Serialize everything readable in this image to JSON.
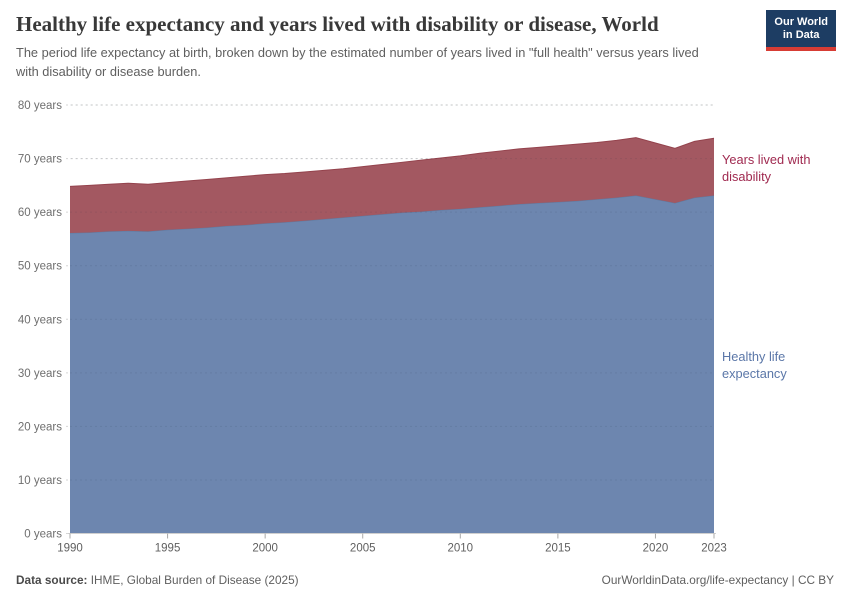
{
  "header": {
    "title": "Healthy life expectancy and years lived with disability or disease, World",
    "subtitle": "The period life expectancy at birth, broken down by the estimated number of years lived in \"full health\" versus years lived with disability or disease burden."
  },
  "logo": {
    "line1": "Our World",
    "line2": "in Data",
    "bg_color": "#1d3d63",
    "accent_color": "#d73c34"
  },
  "chart_data": {
    "type": "area",
    "stacked": true,
    "title": "Healthy life expectancy and years lived with disability or disease, World",
    "xlabel": "",
    "ylabel": "years",
    "ylim": [
      0,
      80
    ],
    "grid": "dashed horizontal",
    "legend_position": "right-edge annotations",
    "x": [
      1990,
      1991,
      1992,
      1993,
      1994,
      1995,
      1996,
      1997,
      1998,
      1999,
      2000,
      2001,
      2002,
      2003,
      2004,
      2005,
      2006,
      2007,
      2008,
      2009,
      2010,
      2011,
      2012,
      2013,
      2014,
      2015,
      2016,
      2017,
      2018,
      2019,
      2020,
      2021,
      2022,
      2023
    ],
    "x_ticks": [
      1990,
      1995,
      2000,
      2005,
      2010,
      2015,
      2020,
      2023
    ],
    "x_tick_labels": [
      "1990",
      "1995",
      "2000",
      "2005",
      "2010",
      "2015",
      "2020",
      "2023"
    ],
    "y_ticks": [
      0,
      10,
      20,
      30,
      40,
      50,
      60,
      70,
      80
    ],
    "y_tick_labels": [
      "0 years",
      "10 years",
      "20 years",
      "30 years",
      "40 years",
      "50 years",
      "60 years",
      "70 years",
      "80 years"
    ],
    "series": [
      {
        "name": "Healthy life expectancy",
        "color": "#6d86af",
        "edge_color": "#60799f",
        "label_color": "#5b77a8",
        "values": [
          56.1,
          56.2,
          56.4,
          56.5,
          56.4,
          56.7,
          56.9,
          57.1,
          57.4,
          57.6,
          57.9,
          58.1,
          58.4,
          58.7,
          59.0,
          59.3,
          59.6,
          59.9,
          60.1,
          60.4,
          60.6,
          60.9,
          61.2,
          61.5,
          61.7,
          61.9,
          62.1,
          62.4,
          62.7,
          63.1,
          62.4,
          61.7,
          62.7,
          63.1
        ]
      },
      {
        "name": "Years lived with disability",
        "color": "#a35861",
        "edge_color": "#94434d",
        "label_color": "#a02a50",
        "values": [
          8.7,
          8.8,
          8.8,
          8.9,
          8.8,
          8.8,
          8.9,
          9.0,
          9.0,
          9.1,
          9.1,
          9.1,
          9.1,
          9.1,
          9.1,
          9.2,
          9.3,
          9.4,
          9.6,
          9.7,
          9.9,
          10.1,
          10.2,
          10.3,
          10.4,
          10.5,
          10.6,
          10.6,
          10.7,
          10.8,
          10.5,
          10.2,
          10.5,
          10.7
        ]
      }
    ],
    "annotations": [
      {
        "text": "Years lived with disability",
        "lines": [
          "Years lived with",
          "disability"
        ]
      },
      {
        "text": "Healthy life expectancy",
        "lines": [
          "Healthy life",
          "expectancy"
        ]
      }
    ]
  },
  "footer": {
    "source_prefix": "Data source:",
    "source_text": " IHME, Global Burden of Disease (2025)",
    "right_text": "OurWorldinData.org/life-expectancy | CC BY"
  }
}
